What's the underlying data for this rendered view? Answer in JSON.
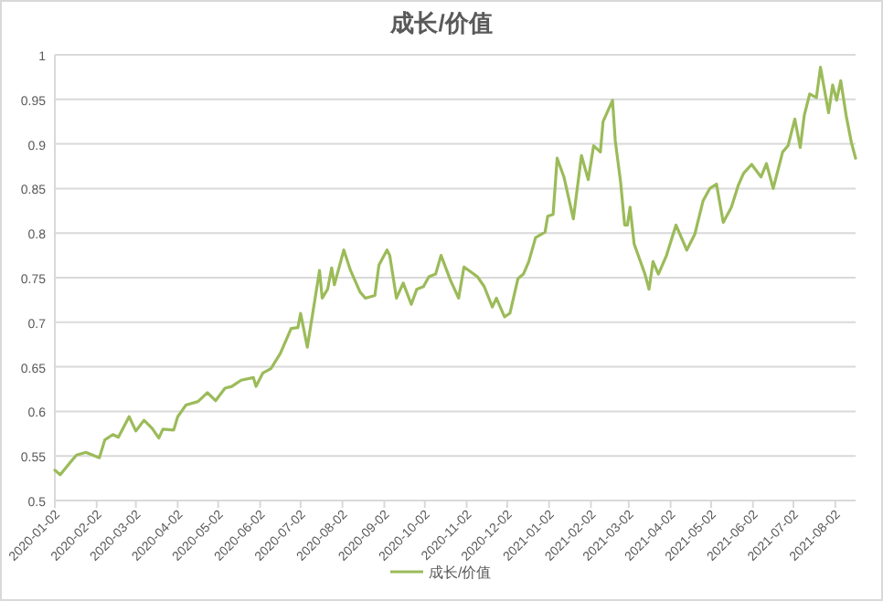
{
  "chart_data": {
    "type": "line",
    "title": "成长/价值",
    "legend": "bottom",
    "grid": "y",
    "x": [
      "2020-01-02",
      "2020-01-06",
      "2020-01-13",
      "2020-01-18",
      "2020-01-25",
      "2020-02-04",
      "2020-02-08",
      "2020-02-14",
      "2020-02-18",
      "2020-02-26",
      "2020-03-02",
      "2020-03-08",
      "2020-03-14",
      "2020-03-19",
      "2020-03-22",
      "2020-03-30",
      "2020-04-02",
      "2020-04-08",
      "2020-04-17",
      "2020-04-24",
      "2020-04-30",
      "2020-05-07",
      "2020-05-12",
      "2020-05-19",
      "2020-05-28",
      "2020-05-30",
      "2020-06-04",
      "2020-06-10",
      "2020-06-17",
      "2020-06-25",
      "2020-06-30",
      "2020-07-02",
      "2020-07-07",
      "2020-07-16",
      "2020-07-18",
      "2020-07-22",
      "2020-07-25",
      "2020-07-27",
      "2020-08-03",
      "2020-08-08",
      "2020-08-15",
      "2020-08-19",
      "2020-08-26",
      "2020-08-29",
      "2020-09-04",
      "2020-09-06",
      "2020-09-11",
      "2020-09-16",
      "2020-09-22",
      "2020-09-26",
      "2020-10-01",
      "2020-10-05",
      "2020-10-10",
      "2020-10-14",
      "2020-10-21",
      "2020-10-27",
      "2020-10-31",
      "2020-11-10",
      "2020-11-15",
      "2020-11-21",
      "2020-11-24",
      "2020-11-30",
      "2020-12-04",
      "2020-12-10",
      "2020-12-14",
      "2020-12-18",
      "2020-12-23",
      "2020-12-30",
      "2021-01-01",
      "2021-01-05",
      "2021-01-08",
      "2021-01-13",
      "2021-01-20",
      "2021-01-26",
      "2021-01-31",
      "2021-02-04",
      "2021-02-09",
      "2021-02-11",
      "2021-02-18",
      "2021-02-20",
      "2021-02-24",
      "2021-02-27",
      "2021-03-01",
      "2021-03-03",
      "2021-03-06",
      "2021-03-10",
      "2021-03-14",
      "2021-03-17",
      "2021-03-20",
      "2021-03-24",
      "2021-03-30",
      "2021-04-06",
      "2021-04-14",
      "2021-04-20",
      "2021-04-26",
      "2021-05-01",
      "2021-05-06",
      "2021-05-11",
      "2021-05-17",
      "2021-05-22",
      "2021-05-26",
      "2021-06-01",
      "2021-06-08",
      "2021-06-12",
      "2021-06-17",
      "2021-06-24",
      "2021-06-28",
      "2021-07-03",
      "2021-07-07",
      "2021-07-10",
      "2021-07-14",
      "2021-07-19",
      "2021-07-22",
      "2021-07-28",
      "2021-07-31",
      "2021-08-03",
      "2021-08-06",
      "2021-08-10",
      "2021-08-14",
      "2021-08-17"
    ],
    "series": [
      {
        "name": "成长/价值",
        "color": "#9bbb59",
        "values": [
          0.534,
          0.529,
          0.542,
          0.551,
          0.554,
          0.548,
          0.568,
          0.574,
          0.571,
          0.594,
          0.578,
          0.59,
          0.581,
          0.57,
          0.58,
          0.579,
          0.594,
          0.607,
          0.611,
          0.621,
          0.612,
          0.626,
          0.628,
          0.635,
          0.638,
          0.628,
          0.643,
          0.648,
          0.665,
          0.693,
          0.694,
          0.71,
          0.672,
          0.758,
          0.727,
          0.737,
          0.761,
          0.742,
          0.781,
          0.758,
          0.734,
          0.727,
          0.73,
          0.764,
          0.781,
          0.775,
          0.727,
          0.744,
          0.72,
          0.737,
          0.74,
          0.751,
          0.754,
          0.775,
          0.747,
          0.727,
          0.762,
          0.751,
          0.74,
          0.717,
          0.727,
          0.706,
          0.71,
          0.749,
          0.754,
          0.768,
          0.795,
          0.801,
          0.819,
          0.821,
          0.884,
          0.863,
          0.816,
          0.887,
          0.86,
          0.898,
          0.891,
          0.925,
          0.949,
          0.904,
          0.857,
          0.809,
          0.809,
          0.829,
          0.788,
          0.771,
          0.754,
          0.737,
          0.768,
          0.754,
          0.775,
          0.809,
          0.781,
          0.799,
          0.836,
          0.85,
          0.855,
          0.812,
          0.829,
          0.853,
          0.867,
          0.877,
          0.863,
          0.878,
          0.85,
          0.891,
          0.898,
          0.928,
          0.896,
          0.932,
          0.956,
          0.952,
          0.986,
          0.935,
          0.966,
          0.949,
          0.971,
          0.932,
          0.901,
          0.884
        ]
      }
    ],
    "xlim": [
      "2020-01-02",
      "2021-08-17"
    ],
    "ylim": [
      0.5,
      1
    ],
    "yticks": [
      0.5,
      0.55,
      0.6,
      0.65,
      0.7,
      0.75,
      0.8,
      0.85,
      0.9,
      0.95,
      1
    ],
    "xticks": [
      {
        "value": "2020-01-02",
        "label": "2020-01-02"
      },
      {
        "value": "2020-02-02",
        "label": "2020-02-02"
      },
      {
        "value": "2020-03-02",
        "label": "2020-03-02"
      },
      {
        "value": "2020-04-02",
        "label": "2020-04-02"
      },
      {
        "value": "2020-05-02",
        "label": "2020-05-02"
      },
      {
        "value": "2020-06-02",
        "label": "2020-06-02"
      },
      {
        "value": "2020-07-02",
        "label": "2020-07-02"
      },
      {
        "value": "2020-08-02",
        "label": "2020-08-02"
      },
      {
        "value": "2020-09-02",
        "label": "2020-09-02"
      },
      {
        "value": "2020-10-02",
        "label": "2020-10-02"
      },
      {
        "value": "2020-11-02",
        "label": "2020-11-02"
      },
      {
        "value": "2020-12-02",
        "label": "2020-12-02"
      },
      {
        "value": "2021-01-02",
        "label": "2021-01-02"
      },
      {
        "value": "2021-02-02",
        "label": "2021-02-02"
      },
      {
        "value": "2021-03-02",
        "label": "2021-03-02"
      },
      {
        "value": "2021-04-02",
        "label": "2021-04-02"
      },
      {
        "value": "2021-05-02",
        "label": "2021-05-02"
      },
      {
        "value": "2021-06-02",
        "label": "2021-06-02"
      },
      {
        "value": "2021-07-02",
        "label": "2021-07-02"
      },
      {
        "value": "2021-08-02",
        "label": "2021-08-02"
      }
    ]
  }
}
